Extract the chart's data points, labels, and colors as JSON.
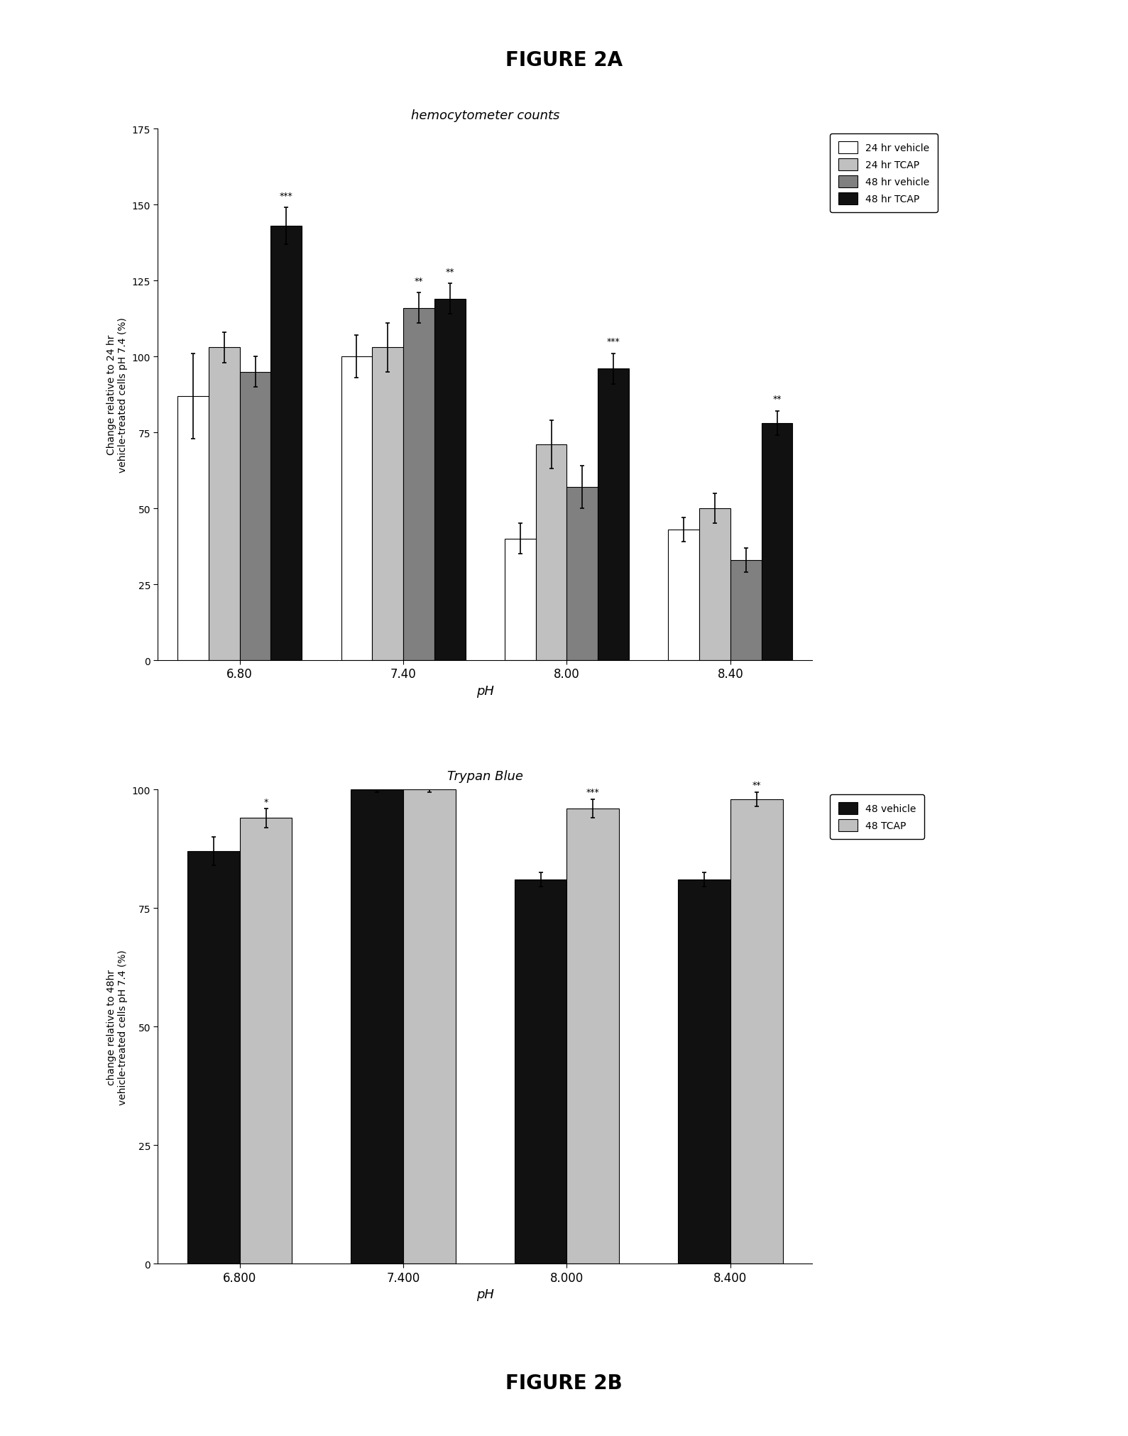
{
  "fig_title_top": "FIGURE 2A",
  "fig_title_bottom": "FIGURE 2B",
  "chart1": {
    "title": "hemocytometer counts",
    "xlabel": "pH",
    "ylabel": "Change relative to 24 hr\nvehicle-treated cells pH 7.4 (%)",
    "ylim": [
      0,
      175
    ],
    "yticks": [
      0,
      25,
      50,
      75,
      100,
      125,
      150,
      175
    ],
    "groups": [
      "6.80",
      "7.40",
      "8.00",
      "8.40"
    ],
    "series_labels": [
      "24 hr vehicle",
      "24 hr TCAP",
      "48 hr vehicle",
      "48 hr TCAP"
    ],
    "values": [
      [
        87,
        100,
        40,
        43
      ],
      [
        103,
        103,
        71,
        50
      ],
      [
        95,
        116,
        57,
        33
      ],
      [
        143,
        119,
        96,
        78
      ]
    ],
    "errors": [
      [
        14,
        7,
        5,
        4
      ],
      [
        5,
        8,
        8,
        5
      ],
      [
        5,
        5,
        7,
        4
      ],
      [
        6,
        5,
        5,
        4
      ]
    ],
    "annot_groups": [
      0,
      1,
      1,
      2,
      3
    ],
    "annot_series": [
      3,
      2,
      3,
      3,
      3
    ],
    "annot_texts": [
      "***",
      "**",
      "**",
      "***",
      "**"
    ],
    "colors": [
      "#ffffff",
      "#c0c0c0",
      "#808080",
      "#111111"
    ],
    "hatches": [
      "",
      "",
      "",
      ""
    ],
    "edgecolors": [
      "#000000",
      "#000000",
      "#000000",
      "#000000"
    ]
  },
  "chart2": {
    "title": "Trypan Blue",
    "xlabel": "pH",
    "ylabel": "change relative to 48hr\nvehicle-treated cells pH 7.4 (%)",
    "ylim": [
      0,
      100
    ],
    "yticks": [
      0,
      25,
      50,
      75,
      100
    ],
    "groups": [
      "6.800",
      "7.400",
      "8.000",
      "8.400"
    ],
    "series_labels": [
      "48 vehicle",
      "48 TCAP"
    ],
    "values": [
      [
        87,
        100,
        81,
        81
      ],
      [
        94,
        100,
        96,
        98
      ]
    ],
    "errors": [
      [
        3,
        0.5,
        1.5,
        1.5
      ],
      [
        2,
        0.5,
        2,
        1.5
      ]
    ],
    "annot_groups": [
      0,
      2,
      3
    ],
    "annot_series": [
      1,
      1,
      1
    ],
    "annot_texts": [
      "*",
      "***",
      "**"
    ],
    "colors": [
      "#111111",
      "#c0c0c0"
    ],
    "hatches": [
      "",
      ""
    ],
    "edgecolors": [
      "#000000",
      "#000000"
    ]
  }
}
